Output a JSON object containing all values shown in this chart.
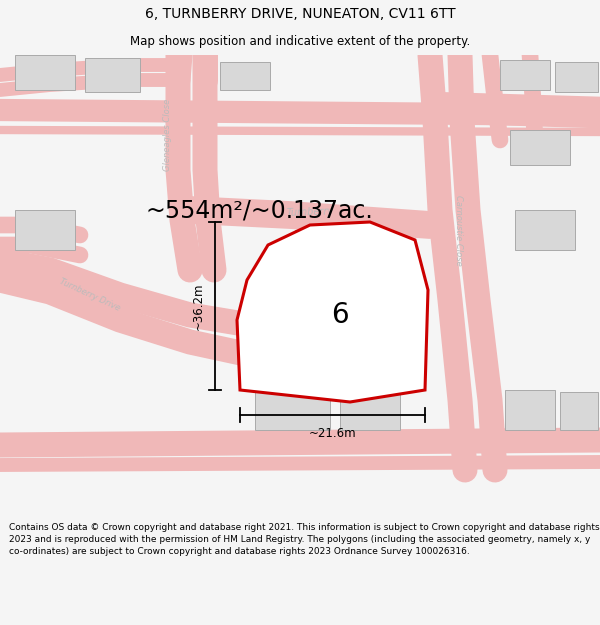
{
  "title": "6, TURNBERRY DRIVE, NUNEATON, CV11 6TT",
  "subtitle": "Map shows position and indicative extent of the property.",
  "area_label": "~554m²/~0.137ac.",
  "number_label": "6",
  "dim_h": "~36.2m",
  "dim_w": "~21.6m",
  "footer": "Contains OS data © Crown copyright and database right 2021. This information is subject to Crown copyright and database rights 2023 and is reproduced with the permission of HM Land Registry. The polygons (including the associated geometry, namely x, y co-ordinates) are subject to Crown copyright and database rights 2023 Ordnance Survey 100026316.",
  "bg_color": "#f5f5f5",
  "map_bg": "#ffffff",
  "road_color": "#f0b8b8",
  "boundary_color": "#cc0000",
  "building_color": "#d8d8d8",
  "title_fontsize": 10,
  "subtitle_fontsize": 8.5,
  "area_fontsize": 17,
  "footer_fontsize": 6.5,
  "road_label_color": "#bbbbbb",
  "road_label_size": 6.5
}
